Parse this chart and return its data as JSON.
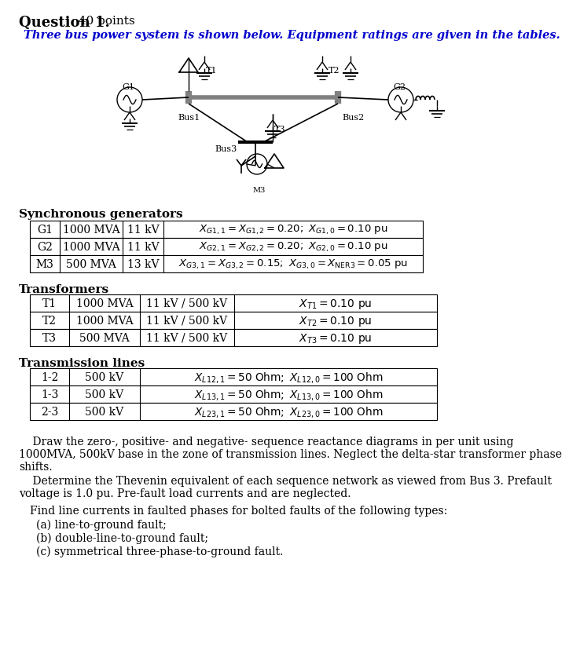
{
  "title": "Question 1.",
  "title_points": "  40 points",
  "subtitle": "Three bus power system is shown below. Equipment ratings are given in the tables.",
  "bg_color": "#ffffff",
  "text_color": "#000000",
  "blue_color": "#0000cd",
  "section_gen": "Synchronous generators",
  "section_trans": "Transformers",
  "section_lines": "Transmission lines",
  "gen_data": [
    [
      "G1",
      "1000 MVA",
      "11 kV"
    ],
    [
      "G2",
      "1000 MVA",
      "11 kV"
    ],
    [
      "M3",
      "500 MVA",
      "13 kV"
    ]
  ],
  "gen_formulas": [
    "$X_{G1,1}=X_{G1,2}=0.20;\\ X_{G1,0}=0.10\\ \\mathrm{pu}$",
    "$X_{G2,1}=X_{G2,2}=0.20;\\ X_{G2,0}=0.10\\ \\mathrm{pu}$",
    "$X_{G3,1}=X_{G3,2}=0.15;\\ X_{G3,0}=X_{\\mathrm{NER3}}=0.05\\ \\mathrm{pu}$"
  ],
  "trans_data": [
    [
      "T1",
      "1000 MVA",
      "11 kV / 500 kV"
    ],
    [
      "T2",
      "1000 MVA",
      "11 kV / 500 kV"
    ],
    [
      "T3",
      "500 MVA",
      "11 kV / 500 kV"
    ]
  ],
  "trans_formulas": [
    "$X_{T1}=0.10\\ \\mathrm{pu}$",
    "$X_{T2}=0.10\\ \\mathrm{pu}$",
    "$X_{T3}=0.10\\ \\mathrm{pu}$"
  ],
  "line_data": [
    [
      "1-2",
      "500 kV"
    ],
    [
      "1-3",
      "500 kV"
    ],
    [
      "2-3",
      "500 kV"
    ]
  ],
  "line_formulas": [
    "$X_{L12,1}=50\\ \\mathrm{Ohm};\\ X_{L12,0}=100\\ \\mathrm{Ohm}$",
    "$X_{L13,1}=50\\ \\mathrm{Ohm};\\ X_{L13,0}=100\\ \\mathrm{Ohm}$",
    "$X_{L23,1}=50\\ \\mathrm{Ohm};\\ X_{L23,0}=100\\ \\mathrm{Ohm}$"
  ],
  "para1": "    Draw the zero-, positive- and negative- sequence reactance diagrams in per unit using\n1000MVA, 500kV base in the zone of transmission lines. Neglect the delta-star transformer phase\nshifts.",
  "para2": "    Determine the Thevenin equivalent of each sequence network as viewed from Bus 3. Prefault\nvoltage is 1.0 pu. Pre-fault load currents and are neglected.",
  "para3": "Find line currents in faulted phases for bolted faults of the following types:",
  "item_a": "(a) line-to-ground fault;",
  "item_b": "(b) double-line-to-ground fault;",
  "item_c": "(c) symmetrical three-phase-to-ground fault."
}
